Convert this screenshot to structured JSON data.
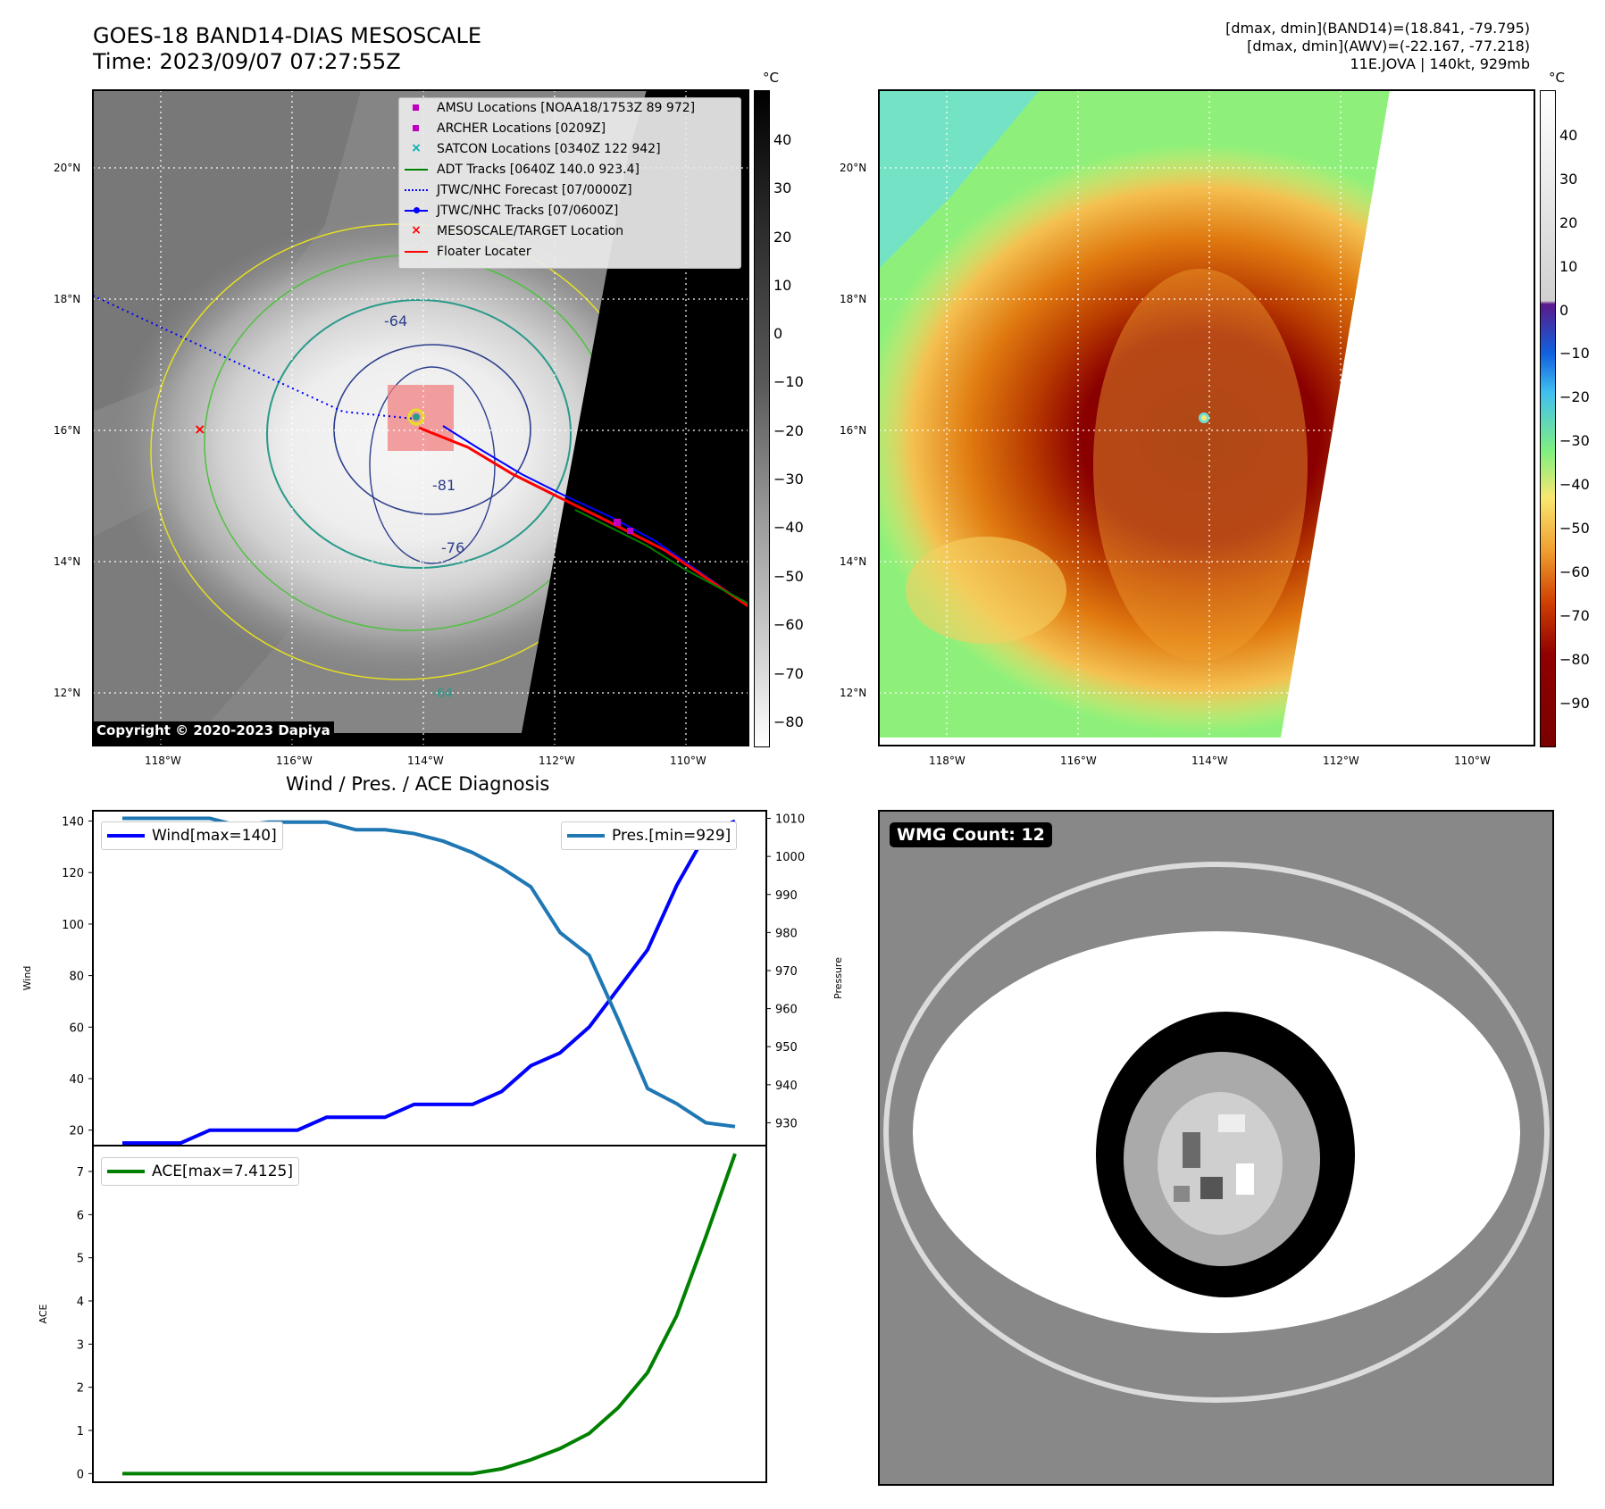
{
  "header": {
    "title_line1": "GOES-18 BAND14-DIAS MESOSCALE",
    "title_line2": "Time: 2023/09/07 07:27:55Z",
    "stats_line1": "[dmax, dmin](BAND14)=(18.841, -79.795)",
    "stats_line2": "[dmax, dmin](AWV)=(-22.167, -77.218)",
    "stats_line3": "11E.JOVA | 140kt, 929mb"
  },
  "map": {
    "lat_labels": [
      "20°N",
      "18°N",
      "16°N",
      "14°N",
      "12°N"
    ],
    "lon_labels": [
      "118°W",
      "116°W",
      "114°W",
      "112°W",
      "110°W"
    ],
    "copyright": "Copyright © 2020-2023 Dapiya",
    "contour_labels": [
      "-64",
      "-81",
      "-76",
      "-64"
    ],
    "legend": [
      {
        "label": "AMSU Locations [NOAA18/1753Z 89 972]",
        "symbol": "square",
        "color": "#c000c0"
      },
      {
        "label": "ARCHER Locations [0209Z]",
        "symbol": "square",
        "color": "#c000c0"
      },
      {
        "label": "SATCON Locations [0340Z 122 942]",
        "symbol": "x",
        "color": "#00b0b0"
      },
      {
        "label": "ADT Tracks [0640Z 140.0 923.4]",
        "symbol": "line",
        "color": "#008000"
      },
      {
        "label": "JTWC/NHC Forecast [07/0000Z]",
        "symbol": "dotted",
        "color": "#0000ff"
      },
      {
        "label": "JTWC/NHC Tracks [07/0600Z]",
        "symbol": "line-dot",
        "color": "#0000ff"
      },
      {
        "label": "MESOSCALE/TARGET Location",
        "symbol": "x",
        "color": "#ff0000"
      },
      {
        "label": "Floater Locater",
        "symbol": "line",
        "color": "#ff0000"
      }
    ]
  },
  "colorbar_left": {
    "unit": "°C",
    "ticks": [
      "40",
      "30",
      "20",
      "10",
      "0",
      "−10",
      "−20",
      "−30",
      "−40",
      "−50",
      "−60",
      "−70",
      "−80"
    ]
  },
  "colorbar_right": {
    "unit": "°C",
    "ticks": [
      "40",
      "30",
      "20",
      "10",
      "0",
      "−10",
      "−20",
      "−30",
      "−40",
      "−50",
      "−60",
      "−70",
      "−80",
      "−90"
    ]
  },
  "wmg": {
    "label": "WMG Count: 12"
  },
  "chart_data": [
    {
      "type": "line",
      "title": "Wind / Pres. / ACE Diagnosis",
      "ylabel": "Wind",
      "ylabel_right": "Pressure",
      "ylim": [
        14,
        144
      ],
      "ylim_right": [
        924,
        1012
      ],
      "yticks": [
        20,
        40,
        60,
        80,
        100,
        120,
        140
      ],
      "yticks_right": [
        930,
        940,
        950,
        960,
        970,
        980,
        990,
        1000,
        1010
      ],
      "series": [
        {
          "name": "Wind[max=140]",
          "color": "#0000ff",
          "axis": "left",
          "values": [
            15,
            15,
            15,
            20,
            20,
            20,
            20,
            25,
            25,
            25,
            30,
            30,
            30,
            35,
            45,
            50,
            60,
            75,
            90,
            115,
            135,
            140
          ]
        },
        {
          "name": "Pres.[min=929]",
          "color": "#1f77b4",
          "axis": "right",
          "values": [
            1010,
            1010,
            1010,
            1010,
            1008,
            1009,
            1009,
            1009,
            1007,
            1007,
            1006,
            1004,
            1001,
            997,
            992,
            980,
            974,
            957,
            939,
            935,
            930,
            929
          ]
        }
      ]
    },
    {
      "type": "line",
      "ylabel": "ACE",
      "ylim": [
        -0.2,
        7.6
      ],
      "yticks": [
        0,
        1,
        2,
        3,
        4,
        5,
        6,
        7
      ],
      "series": [
        {
          "name": "ACE[max=7.4125]",
          "color": "#008000",
          "values": [
            0,
            0,
            0,
            0,
            0,
            0,
            0,
            0,
            0,
            0,
            0,
            0,
            0.0,
            0.11,
            0.32,
            0.58,
            0.93,
            1.53,
            2.34,
            3.66,
            5.49,
            7.4125
          ]
        }
      ]
    }
  ]
}
